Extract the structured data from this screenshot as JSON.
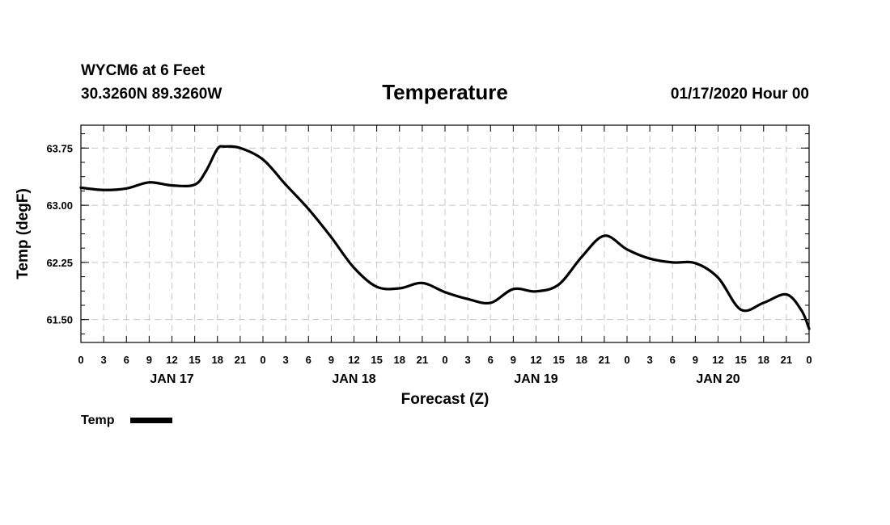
{
  "header": {
    "station": "WYCM6 at 6 Feet",
    "coords": "30.3260N 89.3260W",
    "title": "Temperature",
    "issued": "01/17/2020 Hour 00"
  },
  "chart_data": {
    "type": "line",
    "title": "Temperature",
    "xlabel": "Forecast (Z)",
    "ylabel": "Temp (degF)",
    "x_unit": "hours",
    "xlim": [
      0,
      96
    ],
    "ylim": [
      61.2,
      64.05
    ],
    "yticks": [
      "63.75",
      "63.00",
      "62.25",
      "61.50"
    ],
    "ytick_values": [
      63.75,
      63.0,
      62.25,
      61.5
    ],
    "xtick_labels": [
      "0",
      "3",
      "6",
      "9",
      "12",
      "15",
      "18",
      "21",
      "0",
      "3",
      "6",
      "9",
      "12",
      "15",
      "18",
      "21",
      "0",
      "3",
      "6",
      "9",
      "12",
      "15",
      "18",
      "21",
      "0",
      "3",
      "6",
      "9",
      "12",
      "15",
      "18",
      "21",
      "0"
    ],
    "day_labels": [
      {
        "label": "JAN 17",
        "hour": 12
      },
      {
        "label": "JAN 18",
        "hour": 36
      },
      {
        "label": "JAN 19",
        "hour": 60
      },
      {
        "label": "JAN 20",
        "hour": 84
      }
    ],
    "grid": true,
    "legend": "bottom-left",
    "series": [
      {
        "name": "Temp",
        "color": "#000000",
        "x": [
          0,
          3,
          6,
          9,
          12,
          15,
          16.5,
          18,
          19,
          21,
          24,
          27,
          30,
          33,
          36,
          39,
          42,
          45,
          48,
          51,
          54,
          57,
          60,
          63,
          66,
          69,
          72,
          75,
          78,
          81,
          84,
          87,
          90,
          93,
          95,
          96
        ],
        "values": [
          63.23,
          63.2,
          63.22,
          63.3,
          63.26,
          63.27,
          63.45,
          63.74,
          63.77,
          63.75,
          63.6,
          63.27,
          62.95,
          62.58,
          62.18,
          61.93,
          61.91,
          61.98,
          61.86,
          61.77,
          61.72,
          61.9,
          61.87,
          61.96,
          62.32,
          62.6,
          62.42,
          62.3,
          62.25,
          62.24,
          62.05,
          61.63,
          61.72,
          61.83,
          61.62,
          61.38
        ]
      }
    ]
  }
}
